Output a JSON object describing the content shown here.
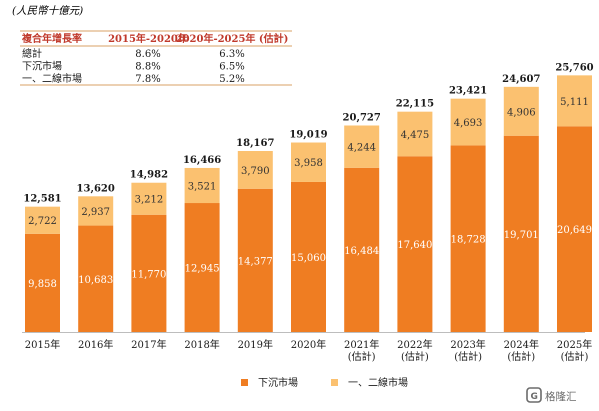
{
  "unit_label": "(人民幣十億元)",
  "cagr_table": {
    "headers": [
      "複合年增長率",
      "2015年-2020年",
      "2020年-2025年 (估計)"
    ],
    "rows": [
      [
        "總計",
        "8.6%",
        "6.3%"
      ],
      [
        "下沉市場",
        "8.8%",
        "6.5%"
      ],
      [
        "一、二線市場",
        "7.8%",
        "5.2%"
      ]
    ]
  },
  "chart_data": {
    "type": "bar",
    "stacked": true,
    "categories": [
      [
        "2015年"
      ],
      [
        "2016年"
      ],
      [
        "2017年"
      ],
      [
        "2018年"
      ],
      [
        "2019年"
      ],
      [
        "2020年"
      ],
      [
        "2021年",
        "(估計)"
      ],
      [
        "2022年",
        "(估計)"
      ],
      [
        "2023年",
        "(估計)"
      ],
      [
        "2024年",
        "(估計)"
      ],
      [
        "2025年",
        "(估計)"
      ]
    ],
    "series": [
      {
        "name": "下沉市場",
        "color": "#ef7d22",
        "values": [
          9858,
          10683,
          11770,
          12945,
          14377,
          15060,
          16484,
          17640,
          18728,
          19701,
          20649
        ]
      },
      {
        "name": "一、二線市場",
        "color": "#fbc170",
        "values": [
          2722,
          2937,
          3212,
          3521,
          3790,
          3958,
          4244,
          4475,
          4693,
          4906,
          5111
        ]
      }
    ],
    "totals": [
      12581,
      13620,
      14982,
      16466,
      18167,
      19019,
      20727,
      22115,
      23421,
      24607,
      25760
    ],
    "ylim": [
      0,
      27000
    ],
    "legend_position": "bottom"
  },
  "watermark": "格隆汇"
}
